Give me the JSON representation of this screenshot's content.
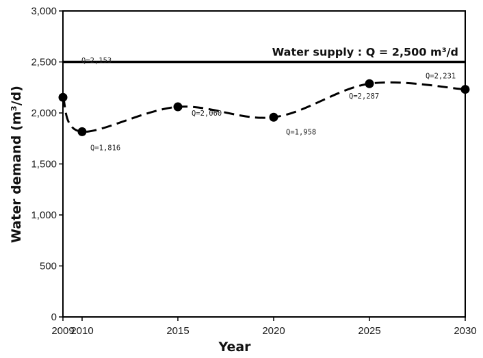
{
  "chart_data": {
    "type": "line",
    "title": "",
    "xlabel": "Year",
    "ylabel": "Water demand (m³/d)",
    "x": [
      2009,
      2010,
      2015,
      2020,
      2025,
      2030
    ],
    "series": [
      {
        "name": "Water demand",
        "values": [
          2153,
          1816,
          2060,
          1958,
          2287,
          2231
        ],
        "labels": [
          "Q=2,153",
          "Q=1,816",
          "Q=2,060",
          "Q=1,958",
          "Q=2,287",
          "Q=2,231"
        ],
        "line_style": "dashed",
        "color": "#000000"
      }
    ],
    "reference_line": {
      "value": 2500,
      "label": "Water supply : Q = 2,500 m³/d",
      "color": "#000000"
    },
    "xlim": [
      2009,
      2030
    ],
    "ylim": [
      0,
      3000
    ],
    "x_ticks": [
      2009,
      2010,
      2015,
      2020,
      2025,
      2030
    ],
    "x_tick_labels": [
      "2009",
      "2010",
      "2015",
      "2020",
      "2025",
      "2030"
    ],
    "y_ticks": [
      0,
      500,
      1000,
      1500,
      2000,
      2500,
      3000
    ],
    "y_tick_labels": [
      "0",
      "500",
      "1,000",
      "1,500",
      "2,000",
      "2,500",
      "3,000"
    ],
    "grid": false,
    "legend": "none"
  }
}
